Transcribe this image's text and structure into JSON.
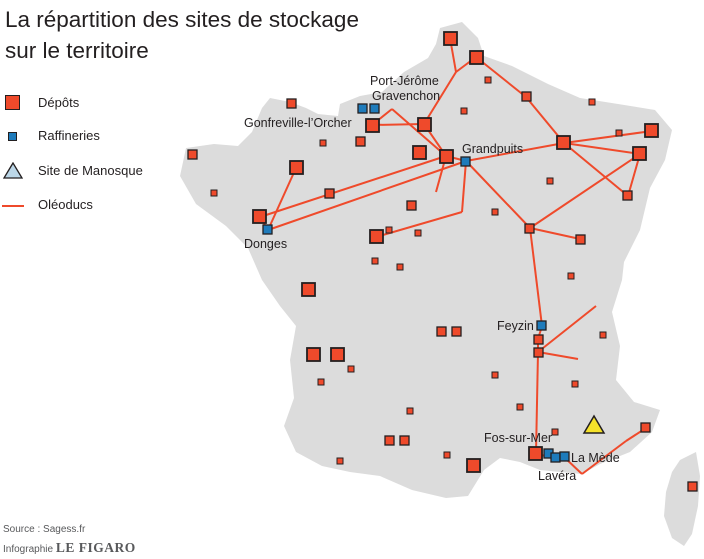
{
  "title": {
    "line1": "La répartition des sites de stockage",
    "line2": "sur le territoire"
  },
  "legend": {
    "depots": "Dépôts",
    "refineries": "Raffineries",
    "manosque": "Site de Manosque",
    "pipelines": "Oléoducs"
  },
  "colors": {
    "land": "#dcdcdc",
    "depot": "#ef4a2b",
    "refinery": "#1e7bbb",
    "manosque": "#f5e22a",
    "pipeline": "#ef4a2b",
    "outline": "#231f20"
  },
  "places": {
    "port_jerome": "Port-Jérôme",
    "gravenchon": "Gravenchon",
    "gonfreville": "Gonfreville-l’Orcher",
    "grandpuits": "Grandpuits",
    "donges": "Donges",
    "feyzin": "Feyzin",
    "fos": "Fos-sur-Mer",
    "la_mede": "La Mède",
    "lavera": "Lavéra"
  },
  "source": {
    "label": "Source :",
    "name": "Sagess.fr"
  },
  "credit": {
    "label": "Infographie",
    "brand": "LE FIGARO"
  }
}
